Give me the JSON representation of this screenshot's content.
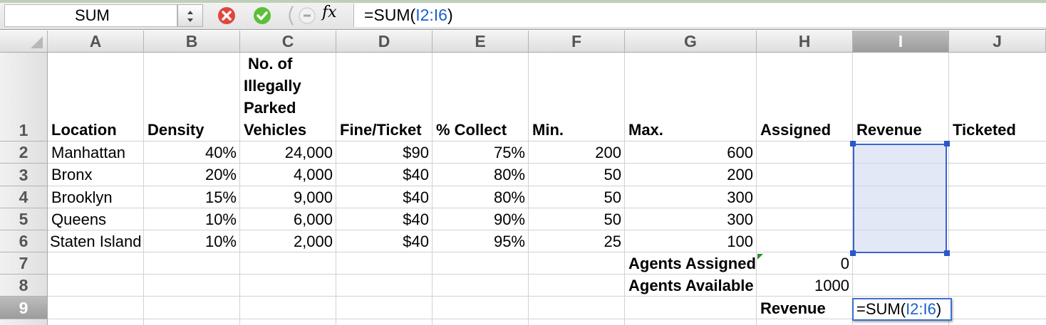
{
  "formula_bar": {
    "name_box": "SUM",
    "fx_label": "fx",
    "formula_prefix": "=SUM(",
    "formula_ref": "I2:I6",
    "formula_suffix": ")"
  },
  "columns": [
    "A",
    "B",
    "C",
    "D",
    "E",
    "F",
    "G",
    "H",
    "I",
    "J"
  ],
  "selected_column": "I",
  "rows": [
    "1",
    "2",
    "3",
    "4",
    "5",
    "6",
    "7",
    "8",
    "9"
  ],
  "selected_row": "9",
  "headers": {
    "location": "Location",
    "density": "Density",
    "vehicles_lines": [
      "No. of",
      "Illegally",
      "Parked",
      "Vehicles"
    ],
    "fine": "Fine/Ticket",
    "collect": "% Collect",
    "min": "Min.",
    "max": "Max.",
    "assigned": "Assigned",
    "revenue": "Revenue",
    "ticketed": "Ticketed"
  },
  "data_rows": [
    {
      "location": "Manhattan",
      "density": "40%",
      "vehicles": "24,000",
      "fine": "$90",
      "collect": "75%",
      "min": "200",
      "max": "600"
    },
    {
      "location": "Bronx",
      "density": "20%",
      "vehicles": "4,000",
      "fine": "$40",
      "collect": "80%",
      "min": "50",
      "max": "200"
    },
    {
      "location": "Brooklyn",
      "density": "15%",
      "vehicles": "9,000",
      "fine": "$40",
      "collect": "80%",
      "min": "50",
      "max": "300"
    },
    {
      "location": "Queens",
      "density": "10%",
      "vehicles": "6,000",
      "fine": "$40",
      "collect": "90%",
      "min": "50",
      "max": "300"
    },
    {
      "location": "Staten Island",
      "density": "10%",
      "vehicles": "2,000",
      "fine": "$40",
      "collect": "95%",
      "min": "25",
      "max": "100"
    }
  ],
  "summary": {
    "agents_assigned_label": "Agents Assigned",
    "agents_assigned_value": "0",
    "agents_available_label": "Agents Available",
    "agents_available_value": "1000",
    "revenue_label": "Revenue",
    "edit_prefix": "=SUM(",
    "edit_ref": "I2:I6",
    "edit_suffix": ")"
  }
}
